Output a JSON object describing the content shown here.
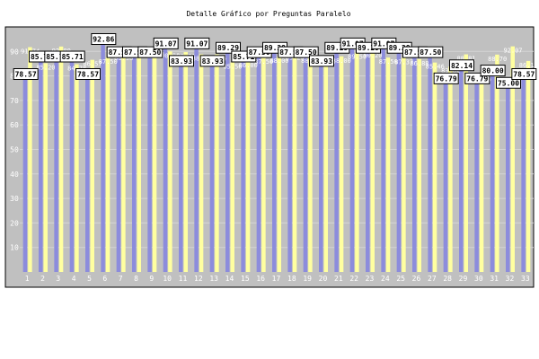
{
  "chart_data": {
    "type": "bar",
    "title": "Detalle Gráfico por Preguntas Paralelo",
    "xlabel": "",
    "ylabel": "",
    "ylim": [
      0,
      100
    ],
    "yticks": [
      10,
      20,
      30,
      40,
      50,
      60,
      70,
      80,
      90
    ],
    "grid": true,
    "legend": "none",
    "categories": [
      "1",
      "2",
      "3",
      "4",
      "5",
      "6",
      "7",
      "8",
      "9",
      "10",
      "11",
      "12",
      "13",
      "14",
      "15",
      "16",
      "17",
      "18",
      "19",
      "20",
      "21",
      "22",
      "23",
      "24",
      "25",
      "26",
      "27",
      "28",
      "29",
      "30",
      "31",
      "32",
      "33"
    ],
    "series": [
      {
        "color": "#8c8cdc",
        "values": [
          78.57,
          85.71,
          85.71,
          85.71,
          78.57,
          92.86,
          87.5,
          87.5,
          87.5,
          91.07,
          83.93,
          91.07,
          83.93,
          89.29,
          85.71,
          87.5,
          89.29,
          87.5,
          87.5,
          83.93,
          89.29,
          91.07,
          89.29,
          91.07,
          89.29,
          87.5,
          87.5,
          76.79,
          82.14,
          76.79,
          80.0,
          75.0,
          78.57
        ]
      },
      {
        "color": "#ffffa0",
        "values": [
          91.74,
          85.2,
          92.0,
          84.78,
          86.57,
          87.5,
          88.98,
          91.9,
          91.25,
          90.0,
          89.71,
          88.84,
          88.84,
          85.5,
          86.0,
          87.5,
          88.0,
          89.2,
          88.0,
          87.52,
          88.0,
          89.5,
          90.2,
          87.5,
          87.37,
          86.88,
          85.46,
          83.82,
          88.81,
          80.36,
          88.7,
          92.07,
          86.11
        ]
      }
    ]
  }
}
